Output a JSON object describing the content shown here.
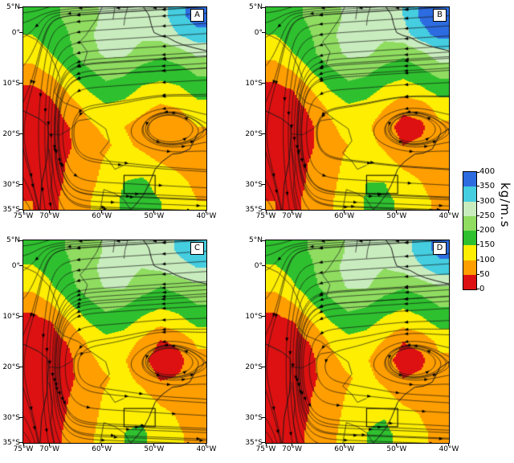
{
  "chart_data": {
    "type": "heatmap",
    "title": "",
    "x_ticks": [
      "75°W",
      "70°W",
      "60°W",
      "50°W",
      "40°W"
    ],
    "y_ticks": [
      "5°N",
      "0°",
      "10°S",
      "20°S",
      "30°S",
      "35°S"
    ],
    "xlim_deg_west": [
      75,
      40
    ],
    "ylim_deg_lat": [
      5,
      -35
    ],
    "grid": false,
    "legend_position": "right-colorbar",
    "colorbar": {
      "label": "kg/m.s",
      "ticks": [
        "400",
        "350",
        "300",
        "250",
        "200",
        "150",
        "100",
        "50",
        "0"
      ],
      "levels": [
        0,
        50,
        100,
        150,
        200,
        250,
        300,
        350,
        400
      ],
      "colors": [
        "#dd1111",
        "#ff9e00",
        "#fdee02",
        "#2fc02f",
        "#8fdc60",
        "#c9ecbe",
        "#45cde0",
        "#2d6ce0"
      ]
    },
    "panels": [
      {
        "label": "A",
        "grid": [
          [
            175,
            190,
            210,
            230,
            260,
            270,
            260,
            280,
            330,
            380
          ],
          [
            150,
            170,
            200,
            240,
            270,
            280,
            260,
            270,
            300,
            330
          ],
          [
            125,
            150,
            190,
            230,
            260,
            260,
            230,
            210,
            230,
            260
          ],
          [
            80,
            110,
            150,
            190,
            220,
            210,
            180,
            170,
            180,
            210
          ],
          [
            40,
            60,
            110,
            150,
            180,
            170,
            140,
            130,
            140,
            170
          ],
          [
            25,
            35,
            70,
            110,
            140,
            130,
            110,
            90,
            100,
            130
          ],
          [
            20,
            25,
            50,
            90,
            110,
            100,
            80,
            60,
            70,
            100
          ],
          [
            20,
            25,
            45,
            75,
            95,
            110,
            90,
            70,
            80,
            90
          ],
          [
            25,
            30,
            55,
            85,
            105,
            130,
            120,
            100,
            90,
            80
          ],
          [
            35,
            30,
            60,
            90,
            110,
            150,
            160,
            130,
            110,
            90
          ],
          [
            50,
            40,
            65,
            95,
            120,
            160,
            170,
            150,
            120,
            100
          ]
        ]
      },
      {
        "label": "B",
        "grid": [
          [
            175,
            190,
            210,
            230,
            260,
            270,
            270,
            300,
            360,
            395
          ],
          [
            150,
            170,
            200,
            240,
            270,
            280,
            260,
            280,
            330,
            370
          ],
          [
            120,
            150,
            190,
            230,
            260,
            260,
            230,
            210,
            240,
            280
          ],
          [
            70,
            100,
            150,
            190,
            220,
            210,
            180,
            170,
            190,
            220
          ],
          [
            35,
            50,
            100,
            150,
            180,
            170,
            140,
            120,
            140,
            170
          ],
          [
            25,
            30,
            60,
            110,
            140,
            130,
            100,
            60,
            70,
            120
          ],
          [
            20,
            25,
            45,
            90,
            120,
            110,
            70,
            30,
            40,
            90
          ],
          [
            20,
            25,
            45,
            80,
            100,
            120,
            90,
            50,
            60,
            80
          ],
          [
            25,
            30,
            55,
            85,
            110,
            140,
            120,
            90,
            80,
            70
          ],
          [
            35,
            30,
            60,
            90,
            115,
            150,
            150,
            120,
            100,
            80
          ],
          [
            50,
            40,
            65,
            95,
            120,
            155,
            160,
            140,
            110,
            90
          ]
        ]
      },
      {
        "label": "C",
        "grid": [
          [
            170,
            185,
            205,
            225,
            255,
            265,
            255,
            270,
            310,
            340
          ],
          [
            145,
            165,
            195,
            235,
            265,
            270,
            250,
            260,
            280,
            300
          ],
          [
            115,
            145,
            185,
            225,
            255,
            255,
            225,
            200,
            220,
            240
          ],
          [
            65,
            95,
            145,
            185,
            215,
            205,
            175,
            160,
            170,
            200
          ],
          [
            30,
            45,
            95,
            145,
            175,
            165,
            135,
            110,
            130,
            160
          ],
          [
            22,
            28,
            55,
            105,
            135,
            125,
            90,
            45,
            60,
            110
          ],
          [
            18,
            22,
            40,
            85,
            115,
            105,
            60,
            25,
            35,
            85
          ],
          [
            18,
            22,
            40,
            75,
            95,
            115,
            85,
            45,
            55,
            75
          ],
          [
            22,
            28,
            50,
            80,
            105,
            135,
            115,
            85,
            75,
            65
          ],
          [
            30,
            28,
            55,
            85,
            110,
            145,
            145,
            115,
            95,
            75
          ],
          [
            45,
            35,
            60,
            90,
            115,
            150,
            155,
            135,
            105,
            85
          ]
        ]
      },
      {
        "label": "D",
        "grid": [
          [
            170,
            185,
            205,
            225,
            255,
            265,
            255,
            275,
            330,
            370
          ],
          [
            145,
            165,
            195,
            235,
            265,
            270,
            250,
            265,
            295,
            330
          ],
          [
            115,
            145,
            185,
            225,
            255,
            255,
            225,
            205,
            225,
            250
          ],
          [
            65,
            95,
            145,
            185,
            215,
            205,
            175,
            160,
            175,
            205
          ],
          [
            30,
            45,
            95,
            145,
            175,
            165,
            135,
            115,
            135,
            165
          ],
          [
            22,
            28,
            55,
            105,
            135,
            125,
            95,
            50,
            65,
            115
          ],
          [
            18,
            22,
            40,
            85,
            115,
            105,
            65,
            30,
            40,
            90
          ],
          [
            18,
            22,
            40,
            75,
            95,
            115,
            85,
            50,
            60,
            80
          ],
          [
            22,
            28,
            50,
            80,
            105,
            135,
            115,
            85,
            80,
            70
          ],
          [
            30,
            28,
            55,
            85,
            110,
            145,
            148,
            118,
            98,
            78
          ],
          [
            45,
            35,
            60,
            90,
            115,
            150,
            158,
            138,
            108,
            88
          ]
        ]
      }
    ]
  }
}
